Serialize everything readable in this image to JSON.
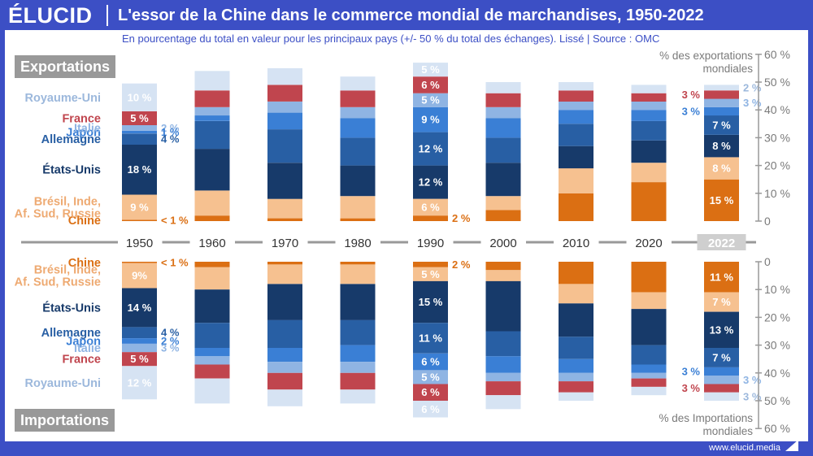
{
  "brand": {
    "logo": "ÉLUCID",
    "url": "www.elucid.media"
  },
  "title": "L'essor de la Chine dans le commerce mondial de marchandises, 1950-2022",
  "subtitle": "En pourcentage du total en valeur pour les principaux pays (+/- 50 % du total des échanges). Lissé  |  Source : OMC",
  "section_labels": {
    "exports": "Exportations",
    "imports": "Importations"
  },
  "colors": {
    "background": "#3c4fc5",
    "Royaume-Uni": "#d6e3f3",
    "France": "#c0454e",
    "Italie": "#8fb4e3",
    "Japon": "#3a7fd5",
    "Allemagne": "#285fa4",
    "États-Unis": "#173a6a",
    "Brésil, Inde, Af. Sud, Russie": "#f6c190",
    "Chine": "#db6f13",
    "axis_line": "#999999"
  },
  "chart_data": {
    "type": "bar",
    "stacked": true,
    "diverging": true,
    "categories": [
      "1950",
      "1960",
      "1970",
      "1980",
      "1990",
      "2000",
      "2010",
      "2020",
      "2022"
    ],
    "highlighted_category": "2022",
    "series_order": [
      "Chine",
      "Brésil, Inde, Af. Sud, Russie",
      "États-Unis",
      "Allemagne",
      "Japon",
      "Italie",
      "France",
      "Royaume-Uni"
    ],
    "series_label_lines": {
      "Chine": [
        "Chine"
      ],
      "Brésil, Inde, Af. Sud, Russie": [
        "Brésil, Inde,",
        "Af. Sud, Russie"
      ],
      "États-Unis": [
        "États-Unis"
      ],
      "Allemagne": [
        "Allemagne"
      ],
      "Japon": [
        "Japon"
      ],
      "Italie": [
        "Italie"
      ],
      "France": [
        "France"
      ],
      "Royaume-Uni": [
        "Royaume-Uni"
      ]
    },
    "exports": {
      "axis_label": [
        "% des exportations",
        "mondiales"
      ],
      "ylim": [
        0,
        60
      ],
      "ticks": [
        "0",
        "10 %",
        "20 %",
        "30 %",
        "40 %",
        "50 %",
        "60 %"
      ],
      "values": {
        "Chine": [
          0.5,
          2,
          1,
          1,
          2,
          4,
          10,
          14,
          15
        ],
        "Brésil, Inde, Af. Sud, Russie": [
          9,
          9,
          7,
          8,
          6,
          5,
          9,
          7,
          8
        ],
        "États-Unis": [
          18,
          15,
          13,
          11,
          12,
          12,
          8,
          8,
          8
        ],
        "Allemagne": [
          4,
          10,
          12,
          10,
          12,
          9,
          8,
          7,
          7
        ],
        "Japon": [
          1,
          2,
          6,
          7,
          9,
          7,
          5,
          4,
          3
        ],
        "Italie": [
          2,
          3,
          4,
          4,
          5,
          4,
          3,
          3,
          3
        ],
        "France": [
          5,
          6,
          6,
          6,
          6,
          5,
          4,
          3,
          3
        ],
        "Royaume-Uni": [
          10,
          7,
          6,
          5,
          5,
          4,
          3,
          3,
          2
        ]
      },
      "labels": [
        {
          "series": "Royaume-Uni",
          "cat": 0,
          "text": "10 %",
          "pos": "in"
        },
        {
          "series": "France",
          "cat": 0,
          "text": "5 %",
          "pos": "in"
        },
        {
          "series": "Italie",
          "cat": 0,
          "text": "2 %",
          "pos": "right"
        },
        {
          "series": "Japon",
          "cat": 0,
          "text": "1 %",
          "pos": "right"
        },
        {
          "series": "Allemagne",
          "cat": 0,
          "text": "4 %",
          "pos": "right"
        },
        {
          "series": "États-Unis",
          "cat": 0,
          "text": "18 %",
          "pos": "in"
        },
        {
          "series": "Brésil, Inde, Af. Sud, Russie",
          "cat": 0,
          "text": "9 %",
          "pos": "in"
        },
        {
          "series": "Chine",
          "cat": 0,
          "text": "< 1 %",
          "pos": "right"
        },
        {
          "series": "Royaume-Uni",
          "cat": 4,
          "text": "5 %",
          "pos": "in"
        },
        {
          "series": "France",
          "cat": 4,
          "text": "6 %",
          "pos": "in"
        },
        {
          "series": "Italie",
          "cat": 4,
          "text": "5 %",
          "pos": "in"
        },
        {
          "series": "Japon",
          "cat": 4,
          "text": "9 %",
          "pos": "in"
        },
        {
          "series": "Allemagne",
          "cat": 4,
          "text": "12 %",
          "pos": "in"
        },
        {
          "series": "États-Unis",
          "cat": 4,
          "text": "12 %",
          "pos": "in"
        },
        {
          "series": "Brésil, Inde, Af. Sud, Russie",
          "cat": 4,
          "text": "6 %",
          "pos": "in"
        },
        {
          "series": "Chine",
          "cat": 4,
          "text": "2 %",
          "pos": "right"
        },
        {
          "series": "Royaume-Uni",
          "cat": 8,
          "text": "2 %",
          "pos": "right"
        },
        {
          "series": "France",
          "cat": 8,
          "text": "3 %",
          "pos": "left"
        },
        {
          "series": "Italie",
          "cat": 8,
          "text": "3 %",
          "pos": "right"
        },
        {
          "series": "Japon",
          "cat": 8,
          "text": "3 %",
          "pos": "left"
        },
        {
          "series": "Allemagne",
          "cat": 8,
          "text": "7 %",
          "pos": "in"
        },
        {
          "series": "États-Unis",
          "cat": 8,
          "text": "8 %",
          "pos": "in"
        },
        {
          "series": "Brésil, Inde, Af. Sud, Russie",
          "cat": 8,
          "text": "8 %",
          "pos": "in"
        },
        {
          "series": "Chine",
          "cat": 8,
          "text": "15 %",
          "pos": "in"
        }
      ]
    },
    "imports": {
      "axis_label": [
        "% des Importations",
        "mondiales"
      ],
      "ylim": [
        0,
        60
      ],
      "ticks": [
        "0",
        "10 %",
        "20 %",
        "30 %",
        "40 %",
        "50 %",
        "60 %"
      ],
      "values": {
        "Chine": [
          0.5,
          2,
          1,
          1,
          2,
          3,
          8,
          11,
          11
        ],
        "Brésil, Inde, Af. Sud, Russie": [
          9,
          8,
          7,
          7,
          5,
          4,
          7,
          6,
          7
        ],
        "États-Unis": [
          14,
          12,
          13,
          13,
          15,
          18,
          12,
          13,
          13
        ],
        "Allemagne": [
          4,
          9,
          10,
          9,
          11,
          9,
          8,
          7,
          7
        ],
        "Japon": [
          2,
          3,
          5,
          6,
          6,
          6,
          5,
          3,
          3
        ],
        "Italie": [
          3,
          3,
          4,
          4,
          5,
          3,
          3,
          2,
          3
        ],
        "France": [
          5,
          5,
          6,
          6,
          6,
          5,
          4,
          3,
          3
        ],
        "Royaume-Uni": [
          12,
          9,
          6,
          5,
          6,
          5,
          3,
          3,
          3
        ]
      },
      "labels": [
        {
          "series": "Chine",
          "cat": 0,
          "text": "< 1 %",
          "pos": "right"
        },
        {
          "series": "Brésil, Inde, Af. Sud, Russie",
          "cat": 0,
          "text": "9%",
          "pos": "in"
        },
        {
          "series": "États-Unis",
          "cat": 0,
          "text": "14 %",
          "pos": "in"
        },
        {
          "series": "Allemagne",
          "cat": 0,
          "text": "4 %",
          "pos": "right"
        },
        {
          "series": "Japon",
          "cat": 0,
          "text": "2 %",
          "pos": "right"
        },
        {
          "series": "Italie",
          "cat": 0,
          "text": "3 %",
          "pos": "right"
        },
        {
          "series": "France",
          "cat": 0,
          "text": "5 %",
          "pos": "in"
        },
        {
          "series": "Royaume-Uni",
          "cat": 0,
          "text": "12 %",
          "pos": "in"
        },
        {
          "series": "Chine",
          "cat": 4,
          "text": "2 %",
          "pos": "right"
        },
        {
          "series": "Brésil, Inde, Af. Sud, Russie",
          "cat": 4,
          "text": "5 %",
          "pos": "in"
        },
        {
          "series": "États-Unis",
          "cat": 4,
          "text": "15 %",
          "pos": "in"
        },
        {
          "series": "Allemagne",
          "cat": 4,
          "text": "11 %",
          "pos": "in"
        },
        {
          "series": "Japon",
          "cat": 4,
          "text": "6 %",
          "pos": "in"
        },
        {
          "series": "Italie",
          "cat": 4,
          "text": "5 %",
          "pos": "in"
        },
        {
          "series": "France",
          "cat": 4,
          "text": "6 %",
          "pos": "in"
        },
        {
          "series": "Royaume-Uni",
          "cat": 4,
          "text": "6 %",
          "pos": "in"
        },
        {
          "series": "Chine",
          "cat": 8,
          "text": "11 %",
          "pos": "in"
        },
        {
          "series": "Brésil, Inde, Af. Sud, Russie",
          "cat": 8,
          "text": "7 %",
          "pos": "in"
        },
        {
          "series": "États-Unis",
          "cat": 8,
          "text": "13 %",
          "pos": "in"
        },
        {
          "series": "Allemagne",
          "cat": 8,
          "text": "7 %",
          "pos": "in"
        },
        {
          "series": "Japon",
          "cat": 8,
          "text": "3 %",
          "pos": "left"
        },
        {
          "series": "Italie",
          "cat": 8,
          "text": "3 %",
          "pos": "right"
        },
        {
          "series": "France",
          "cat": 8,
          "text": "3 %",
          "pos": "left"
        },
        {
          "series": "Royaume-Uni",
          "cat": 8,
          "text": "3 %",
          "pos": "right"
        }
      ]
    }
  }
}
